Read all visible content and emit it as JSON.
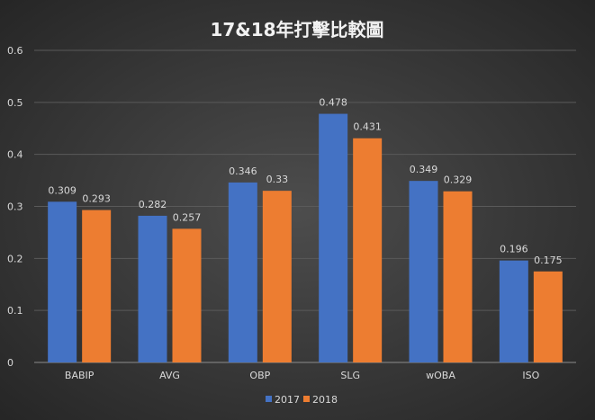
{
  "chart_data": {
    "type": "bar",
    "title": "17&18年打擊比較圖",
    "categories": [
      "BABIP",
      "AVG",
      "OBP",
      "SLG",
      "wOBA",
      "ISO"
    ],
    "series": [
      {
        "name": "2017",
        "color": "#4472c4",
        "values": [
          0.309,
          0.282,
          0.346,
          0.478,
          0.349,
          0.196
        ],
        "labels": [
          "0.309",
          "0.282",
          "0.346",
          "0.478",
          "0.349",
          "0.196"
        ]
      },
      {
        "name": "2018",
        "color": "#ed7d31",
        "values": [
          0.293,
          0.257,
          0.33,
          0.431,
          0.329,
          0.175
        ],
        "labels": [
          "0.293",
          "0.257",
          "0.33",
          "0.431",
          "0.329",
          "0.175"
        ]
      }
    ],
    "ylim": [
      0,
      0.6
    ],
    "yticks": [
      "0",
      "0.1",
      "0.2",
      "0.3",
      "0.4",
      "0.5",
      "0.6"
    ],
    "grid": true,
    "legend": "bottom",
    "xlabel": "",
    "ylabel": ""
  }
}
